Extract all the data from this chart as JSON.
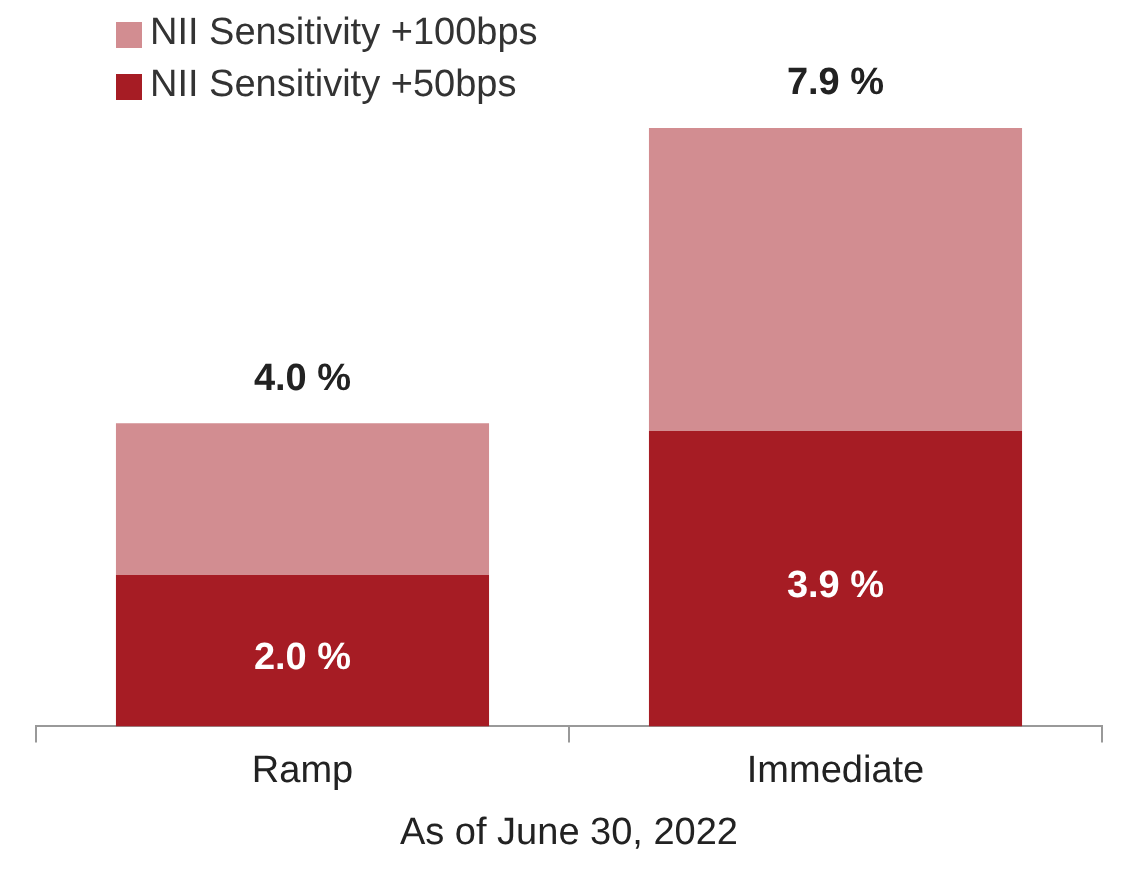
{
  "chart_data": {
    "type": "bar",
    "stacked": true,
    "xlabel": "As of June 30, 2022",
    "categories": [
      "Ramp",
      "Immediate"
    ],
    "series": [
      {
        "name": "NII Sensitivity +50bps",
        "color": "#a61c24",
        "values": [
          2.0,
          3.9
        ],
        "value_labels": [
          "2.0 %",
          "3.9 %"
        ]
      },
      {
        "name": "NII Sensitivity +100bps",
        "color": "#d28d91",
        "values": [
          2.0,
          4.0
        ]
      }
    ],
    "totals": [
      "4.0 %",
      "7.9 %"
    ],
    "legend": "top left",
    "grid": false
  }
}
